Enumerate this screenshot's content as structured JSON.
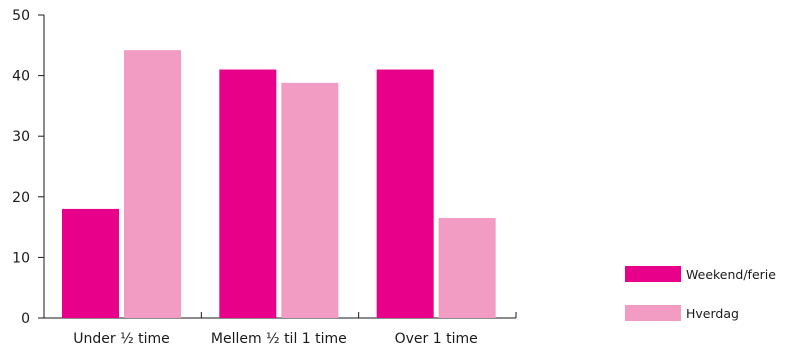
{
  "chart_data": {
    "type": "bar",
    "categories": [
      "Under ½ time",
      "Mellem ½ til 1 time",
      "Over 1 time"
    ],
    "series": [
      {
        "name": "Weekend/ferie",
        "color": "#e8008a",
        "values": [
          18,
          41,
          41
        ]
      },
      {
        "name": "Hverdag",
        "color": "#f29bc3",
        "values": [
          44.2,
          38.8,
          16.5
        ]
      }
    ],
    "ylim": [
      0,
      50
    ],
    "yticks": [
      0,
      10,
      20,
      30,
      40,
      50
    ],
    "grid": false,
    "legend_position": "right"
  }
}
